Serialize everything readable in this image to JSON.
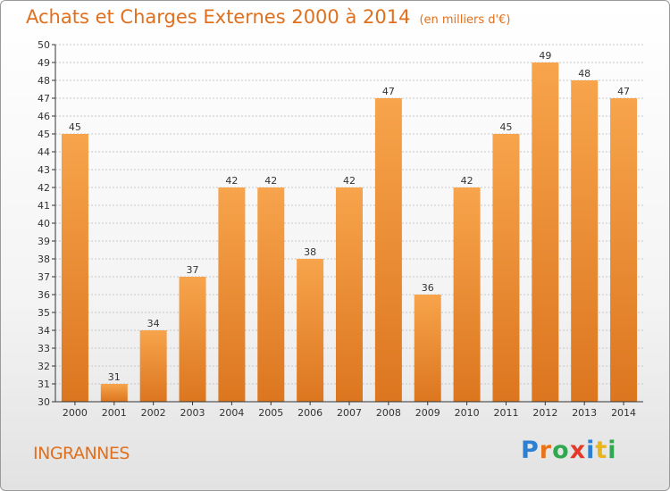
{
  "title": "Achats et Charges Externes 2000 à 2014",
  "unit": "(en milliers d'€)",
  "commune": "INGRANNES",
  "logo": {
    "text": "Proxiti",
    "letters": [
      {
        "ch": "P",
        "color": "#2c7fd1"
      },
      {
        "ch": "r",
        "color": "#e8731a"
      },
      {
        "ch": "o",
        "color": "#2fa84f"
      },
      {
        "ch": "x",
        "color": "#e53a2a"
      },
      {
        "ch": "i",
        "color": "#2c7fd1"
      },
      {
        "ch": "t",
        "color": "#e8b51a"
      },
      {
        "ch": "i",
        "color": "#2fa84f"
      }
    ]
  },
  "colors": {
    "title": "#e0701e",
    "bar_light": "#f7a44c",
    "bar_dark": "#dc761f",
    "grid": "#c8c8c8",
    "axis": "#333333"
  },
  "chart_data": {
    "type": "bar",
    "categories": [
      "2000",
      "2001",
      "2002",
      "2003",
      "2004",
      "2005",
      "2006",
      "2007",
      "2008",
      "2009",
      "2010",
      "2011",
      "2012",
      "2013",
      "2014"
    ],
    "values": [
      45,
      31,
      34,
      37,
      42,
      42,
      38,
      42,
      47,
      36,
      42,
      45,
      49,
      48,
      47
    ],
    "data_labels": [
      "45",
      "31",
      "34",
      "37",
      "42",
      "42",
      "38",
      "42",
      "47",
      "36",
      "42",
      "45",
      "49",
      "48",
      "47"
    ],
    "title": "Achats et Charges Externes 2000 à 2014",
    "xlabel": "",
    "ylabel": "",
    "ylim": [
      30,
      50
    ],
    "yticks": [
      "30",
      "31",
      "32",
      "33",
      "34",
      "35",
      "36",
      "37",
      "38",
      "39",
      "40",
      "41",
      "42",
      "43",
      "44",
      "45",
      "46",
      "47",
      "48",
      "49",
      "50"
    ],
    "grid": true,
    "legend": "none"
  }
}
